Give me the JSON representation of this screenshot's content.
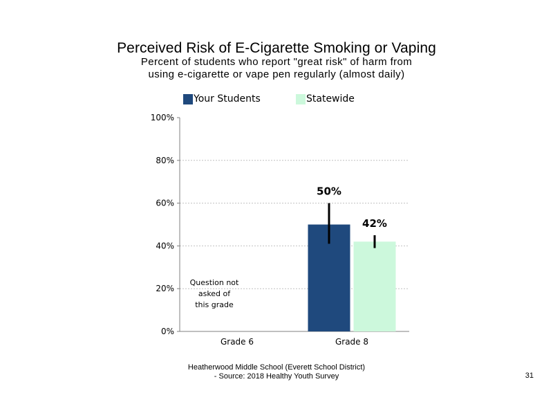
{
  "chart_data": {
    "type": "bar",
    "title": "Perceived Risk of E-Cigarette Smoking or Vaping",
    "subtitle_lines": [
      "Percent of students who report \"great risk\" of harm from",
      "using e-cigarette or vape pen regularly (almost daily)"
    ],
    "categories": [
      "Grade 6",
      "Grade 8"
    ],
    "series": [
      {
        "name": "Your Students",
        "color": "#1f497d",
        "values": [
          null,
          50
        ],
        "labels": [
          "",
          "50%"
        ],
        "error_low": [
          null,
          41
        ],
        "error_high": [
          null,
          60
        ]
      },
      {
        "name": "Statewide",
        "color": "#ccf8dc",
        "values": [
          null,
          42
        ],
        "labels": [
          "",
          "42%"
        ],
        "error_low": [
          null,
          39
        ],
        "error_high": [
          null,
          45
        ]
      }
    ],
    "ylim": [
      0,
      100
    ],
    "yticks": [
      0,
      20,
      40,
      60,
      80,
      100
    ],
    "ytick_labels": [
      "0%",
      "20%",
      "40%",
      "60%",
      "80%",
      "100%"
    ],
    "grid": true,
    "legend_position": "top",
    "annotations": [
      {
        "category": "Grade 6",
        "lines": [
          "Question not",
          "asked of",
          "this grade"
        ]
      }
    ]
  },
  "footer": {
    "line1": "Heatherwood Middle School (Everett School District)",
    "line2": "- Source: 2018 Healthy Youth Survey"
  },
  "page_number": "31"
}
